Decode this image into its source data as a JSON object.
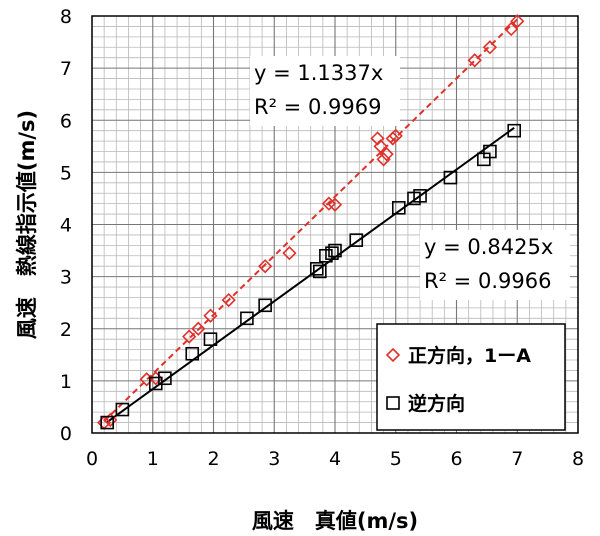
{
  "chart_data": {
    "type": "scatter",
    "xlabel": "風速　真値(m/s)",
    "ylabel": "風速　熱線指示値(m/s)",
    "xlim": [
      0,
      8
    ],
    "ylim": [
      0,
      8
    ],
    "x_ticks": [
      "0",
      "1",
      "2",
      "3",
      "4",
      "5",
      "6",
      "7",
      "8"
    ],
    "y_ticks": [
      "0",
      "1",
      "2",
      "3",
      "4",
      "5",
      "6",
      "7",
      "8"
    ],
    "grid": true,
    "minor_grid": true,
    "legend_position": "right",
    "series": [
      {
        "name": "正方向，1ーA",
        "marker": "diamond",
        "color": "#e0302a",
        "points": [
          [
            0.2,
            0.2
          ],
          [
            0.3,
            0.25
          ],
          [
            0.9,
            1.03
          ],
          [
            1.05,
            1.05
          ],
          [
            1.6,
            1.85
          ],
          [
            1.75,
            2.0
          ],
          [
            1.95,
            2.25
          ],
          [
            2.25,
            2.55
          ],
          [
            2.85,
            3.2
          ],
          [
            3.25,
            3.45
          ],
          [
            3.9,
            4.4
          ],
          [
            4.0,
            4.38
          ],
          [
            4.7,
            5.65
          ],
          [
            4.75,
            5.5
          ],
          [
            4.8,
            5.25
          ],
          [
            4.85,
            5.35
          ],
          [
            4.95,
            5.65
          ],
          [
            5.0,
            5.7
          ],
          [
            6.3,
            7.15
          ],
          [
            6.55,
            7.4
          ],
          [
            6.9,
            7.75
          ],
          [
            7.0,
            7.9
          ]
        ],
        "equation": "y = 1.1337x",
        "r2": "R² = 0.9969",
        "fit_slope": 1.1337,
        "fit_style": "dashed"
      },
      {
        "name": "逆方向",
        "marker": "square",
        "color": "#000000",
        "points": [
          [
            0.25,
            0.2
          ],
          [
            0.5,
            0.45
          ],
          [
            1.05,
            0.95
          ],
          [
            1.2,
            1.05
          ],
          [
            1.65,
            1.52
          ],
          [
            1.95,
            1.8
          ],
          [
            2.55,
            2.2
          ],
          [
            2.85,
            2.45
          ],
          [
            3.7,
            3.15
          ],
          [
            3.75,
            3.1
          ],
          [
            3.85,
            3.4
          ],
          [
            3.95,
            3.45
          ],
          [
            4.0,
            3.5
          ],
          [
            4.35,
            3.7
          ],
          [
            5.05,
            4.32
          ],
          [
            5.3,
            4.5
          ],
          [
            5.4,
            4.55
          ],
          [
            5.9,
            4.9
          ],
          [
            6.45,
            5.25
          ],
          [
            6.55,
            5.4
          ],
          [
            6.95,
            5.8
          ]
        ],
        "equation": "y = 0.8425x",
        "r2": "R² = 0.9966",
        "fit_slope": 0.8425,
        "fit_style": "solid"
      }
    ]
  }
}
